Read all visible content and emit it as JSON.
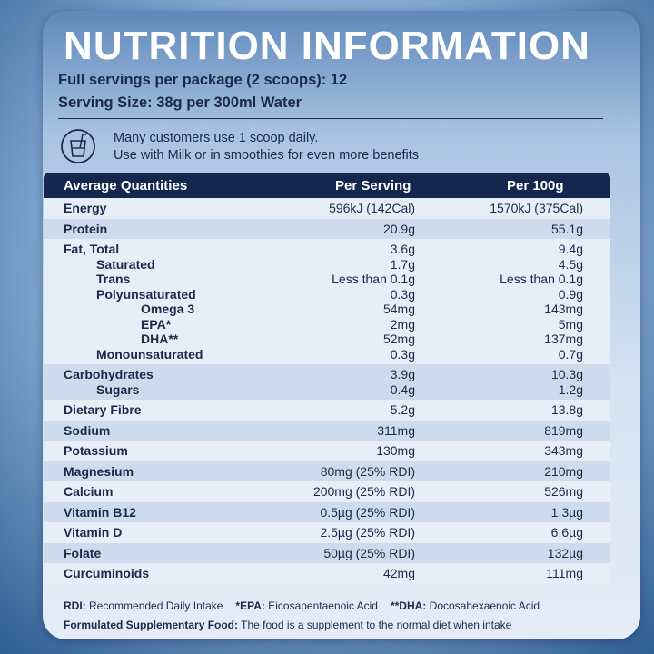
{
  "header": {
    "title": "NUTRITION INFORMATION",
    "servings": "Full servings per package (2 scoops): 12",
    "serving_size": "Serving Size: 38g per 300ml Water"
  },
  "note": {
    "lines": [
      "Many customers use 1 scoop daily.",
      "Use with Milk or in smoothies for even more benefits"
    ]
  },
  "table": {
    "columns": [
      "Average Quantities",
      "Per Serving",
      "Per 100g"
    ],
    "groups": [
      {
        "rows": [
          {
            "name": "Energy",
            "per_serving": "596kJ (142Cal)",
            "per_100g": "1570kJ (375Cal)"
          }
        ]
      },
      {
        "rows": [
          {
            "name": "Protein",
            "per_serving": "20.9g",
            "per_100g": "55.1g"
          }
        ]
      },
      {
        "rows": [
          {
            "name": "Fat, Total",
            "per_serving": "3.6g",
            "per_100g": "9.4g",
            "sub": [
              {
                "name": "Saturated",
                "per_serving": "1.7g",
                "per_100g": "4.5g"
              },
              {
                "name": "Trans",
                "per_serving": "Less than 0.1g",
                "per_100g": "Less than 0.1g"
              },
              {
                "name": "Polyunsaturated",
                "per_serving": "0.3g",
                "per_100g": "0.9g",
                "sub": [
                  {
                    "name": "Omega 3",
                    "per_serving": "54mg",
                    "per_100g": "143mg"
                  },
                  {
                    "name": "EPA*",
                    "per_serving": "2mg",
                    "per_100g": "5mg"
                  },
                  {
                    "name": "DHA**",
                    "per_serving": "52mg",
                    "per_100g": "137mg"
                  }
                ]
              },
              {
                "name": "Monounsaturated",
                "per_serving": "0.3g",
                "per_100g": "0.7g"
              }
            ]
          }
        ]
      },
      {
        "rows": [
          {
            "name": "Carbohydrates",
            "per_serving": "3.9g",
            "per_100g": "10.3g",
            "sub": [
              {
                "name": "Sugars",
                "per_serving": "0.4g",
                "per_100g": "1.2g"
              }
            ]
          }
        ]
      },
      {
        "rows": [
          {
            "name": "Dietary Fibre",
            "per_serving": "5.2g",
            "per_100g": "13.8g"
          }
        ]
      },
      {
        "rows": [
          {
            "name": "Sodium",
            "per_serving": "311mg",
            "per_100g": "819mg"
          }
        ]
      },
      {
        "rows": [
          {
            "name": "Potassium",
            "per_serving": "130mg",
            "per_100g": "343mg"
          }
        ]
      },
      {
        "rows": [
          {
            "name": "Magnesium",
            "per_serving": "80mg (25% RDI)",
            "per_100g": "210mg"
          }
        ]
      },
      {
        "rows": [
          {
            "name": "Calcium",
            "per_serving": "200mg (25% RDI)",
            "per_100g": "526mg"
          }
        ]
      },
      {
        "rows": [
          {
            "name": "Vitamin B12",
            "per_serving": "0.5µg (25% RDI)",
            "per_100g": "1.3µg"
          }
        ]
      },
      {
        "rows": [
          {
            "name": "Vitamin D",
            "per_serving": "2.5µg (25% RDI)",
            "per_100g": "6.6µg"
          }
        ]
      },
      {
        "rows": [
          {
            "name": "Folate",
            "per_serving": "50µg (25% RDI)",
            "per_100g": "132µg"
          }
        ]
      },
      {
        "rows": [
          {
            "name": "Curcuminoids",
            "per_serving": "42mg",
            "per_100g": "111mg"
          }
        ]
      }
    ]
  },
  "footer": {
    "notes": [
      {
        "term": "RDI:",
        "text": "Recommended Daily Intake"
      },
      {
        "term": "*EPA:",
        "text": "Eicosapentaenoic Acid"
      },
      {
        "term": "**DHA:",
        "text": "Docosahexaenoic Acid"
      }
    ],
    "statement": {
      "term": "Formulated Supplementary Food:",
      "text": "The food is a supplement to the normal diet when intake"
    }
  }
}
